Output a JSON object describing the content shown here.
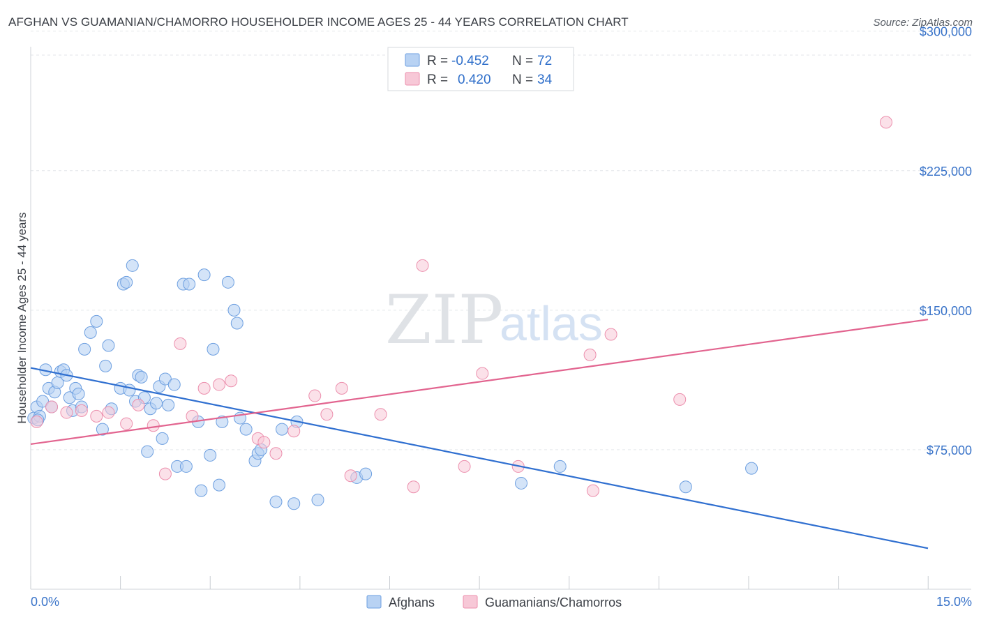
{
  "title": "AFGHAN VS GUAMANIAN/CHAMORRO HOUSEHOLDER INCOME AGES 25 - 44 YEARS CORRELATION CHART",
  "source": "Source: ZipAtlas.com",
  "watermark": {
    "zip": "ZIP",
    "atlas": "atlas"
  },
  "colors": {
    "afghans_fill": "#b8d2f3",
    "afghans_stroke": "#6d9fe0",
    "afghans_line": "#2f6fd0",
    "guam_fill": "#f7c8d7",
    "guam_stroke": "#ec8fad",
    "guam_line": "#e2648f",
    "tick_text": "#3a74c9"
  },
  "legend": {
    "rows": [
      {
        "r_label": "R =",
        "r_value": "-0.452",
        "n_label": "N =",
        "n_value": "72"
      },
      {
        "r_label": "R =",
        "r_value": "0.420",
        "n_label": "N =",
        "n_value": "34"
      }
    ]
  },
  "chart_data": {
    "type": "scatter",
    "title": "AFGHAN VS GUAMANIAN/CHAMORRO HOUSEHOLDER INCOME AGES 25 - 44 YEARS CORRELATION CHART",
    "xlabel": "",
    "ylabel": "Householder Income Ages 25 - 44 years",
    "xlim": [
      0,
      15
    ],
    "ylim": [
      0,
      310000
    ],
    "x_tick_labels": [
      "0.0%",
      "15.0%"
    ],
    "y_ticks": [
      75000,
      150000,
      225000,
      300000
    ],
    "y_tick_labels": [
      "$75,000",
      "$150,000",
      "$225,000",
      "$300,000"
    ],
    "grid": true,
    "legend_position": "top-center",
    "series": [
      {
        "name": "Afghans",
        "R": -0.452,
        "N": 72,
        "trend": {
          "x": [
            0.0,
            15.0
          ],
          "y": [
            119000,
            22000
          ]
        },
        "points": [
          [
            0.05,
            92000
          ],
          [
            0.1,
            98000
          ],
          [
            0.15,
            93000
          ],
          [
            0.2,
            101000
          ],
          [
            0.25,
            118000
          ],
          [
            0.3,
            108000
          ],
          [
            0.35,
            98000
          ],
          [
            0.4,
            106000
          ],
          [
            0.45,
            111000
          ],
          [
            0.5,
            117000
          ],
          [
            0.55,
            118000
          ],
          [
            0.6,
            115000
          ],
          [
            0.65,
            103000
          ],
          [
            0.7,
            96000
          ],
          [
            0.75,
            108000
          ],
          [
            0.8,
            105000
          ],
          [
            0.85,
            98000
          ],
          [
            0.9,
            129000
          ],
          [
            1.0,
            138000
          ],
          [
            1.1,
            144000
          ],
          [
            1.2,
            86000
          ],
          [
            1.25,
            120000
          ],
          [
            1.3,
            131000
          ],
          [
            1.35,
            97000
          ],
          [
            1.5,
            108000
          ],
          [
            1.55,
            164000
          ],
          [
            1.6,
            165000
          ],
          [
            1.65,
            107000
          ],
          [
            1.7,
            174000
          ],
          [
            1.75,
            101000
          ],
          [
            1.8,
            115000
          ],
          [
            1.85,
            114000
          ],
          [
            1.9,
            103000
          ],
          [
            1.95,
            74000
          ],
          [
            2.0,
            97000
          ],
          [
            2.1,
            100000
          ],
          [
            2.15,
            109000
          ],
          [
            2.2,
            81000
          ],
          [
            2.25,
            113000
          ],
          [
            2.3,
            99000
          ],
          [
            2.4,
            110000
          ],
          [
            2.45,
            66000
          ],
          [
            2.55,
            164000
          ],
          [
            2.6,
            66000
          ],
          [
            2.65,
            164000
          ],
          [
            2.8,
            90000
          ],
          [
            2.85,
            53000
          ],
          [
            2.9,
            169000
          ],
          [
            3.0,
            72000
          ],
          [
            3.05,
            129000
          ],
          [
            3.15,
            56000
          ],
          [
            3.2,
            90000
          ],
          [
            3.3,
            165000
          ],
          [
            3.4,
            150000
          ],
          [
            3.45,
            143000
          ],
          [
            3.5,
            92000
          ],
          [
            3.6,
            86000
          ],
          [
            3.75,
            69000
          ],
          [
            3.8,
            73000
          ],
          [
            3.85,
            75000
          ],
          [
            4.1,
            47000
          ],
          [
            4.2,
            86000
          ],
          [
            4.4,
            46000
          ],
          [
            4.45,
            90000
          ],
          [
            4.8,
            48000
          ],
          [
            5.45,
            60000
          ],
          [
            5.6,
            62000
          ],
          [
            8.2,
            57000
          ],
          [
            8.85,
            66000
          ],
          [
            10.95,
            55000
          ],
          [
            12.05,
            65000
          ],
          [
            0.12,
            91000
          ]
        ]
      },
      {
        "name": "Guamanians/Chamorros",
        "R": 0.42,
        "N": 34,
        "trend": {
          "x": [
            0.0,
            15.0
          ],
          "y": [
            78000,
            145000
          ]
        },
        "points": [
          [
            0.1,
            90000
          ],
          [
            0.35,
            98000
          ],
          [
            0.6,
            95000
          ],
          [
            0.85,
            96000
          ],
          [
            1.1,
            93000
          ],
          [
            1.3,
            95000
          ],
          [
            1.6,
            89000
          ],
          [
            1.8,
            99000
          ],
          [
            2.05,
            88000
          ],
          [
            2.25,
            62000
          ],
          [
            2.5,
            132000
          ],
          [
            2.7,
            93000
          ],
          [
            2.9,
            108000
          ],
          [
            3.15,
            110000
          ],
          [
            3.35,
            112000
          ],
          [
            3.8,
            81000
          ],
          [
            3.9,
            79000
          ],
          [
            4.1,
            73000
          ],
          [
            4.4,
            85000
          ],
          [
            4.75,
            104000
          ],
          [
            4.95,
            94000
          ],
          [
            5.2,
            108000
          ],
          [
            5.35,
            61000
          ],
          [
            5.85,
            94000
          ],
          [
            6.4,
            55000
          ],
          [
            6.55,
            174000
          ],
          [
            7.25,
            66000
          ],
          [
            7.55,
            116000
          ],
          [
            8.15,
            66000
          ],
          [
            9.35,
            126000
          ],
          [
            9.4,
            53000
          ],
          [
            9.7,
            137000
          ],
          [
            10.85,
            102000
          ],
          [
            14.3,
            251000
          ]
        ]
      }
    ]
  },
  "bottom_legend": [
    {
      "label": "Afghans"
    },
    {
      "label": "Guamanians/Chamorros"
    }
  ]
}
